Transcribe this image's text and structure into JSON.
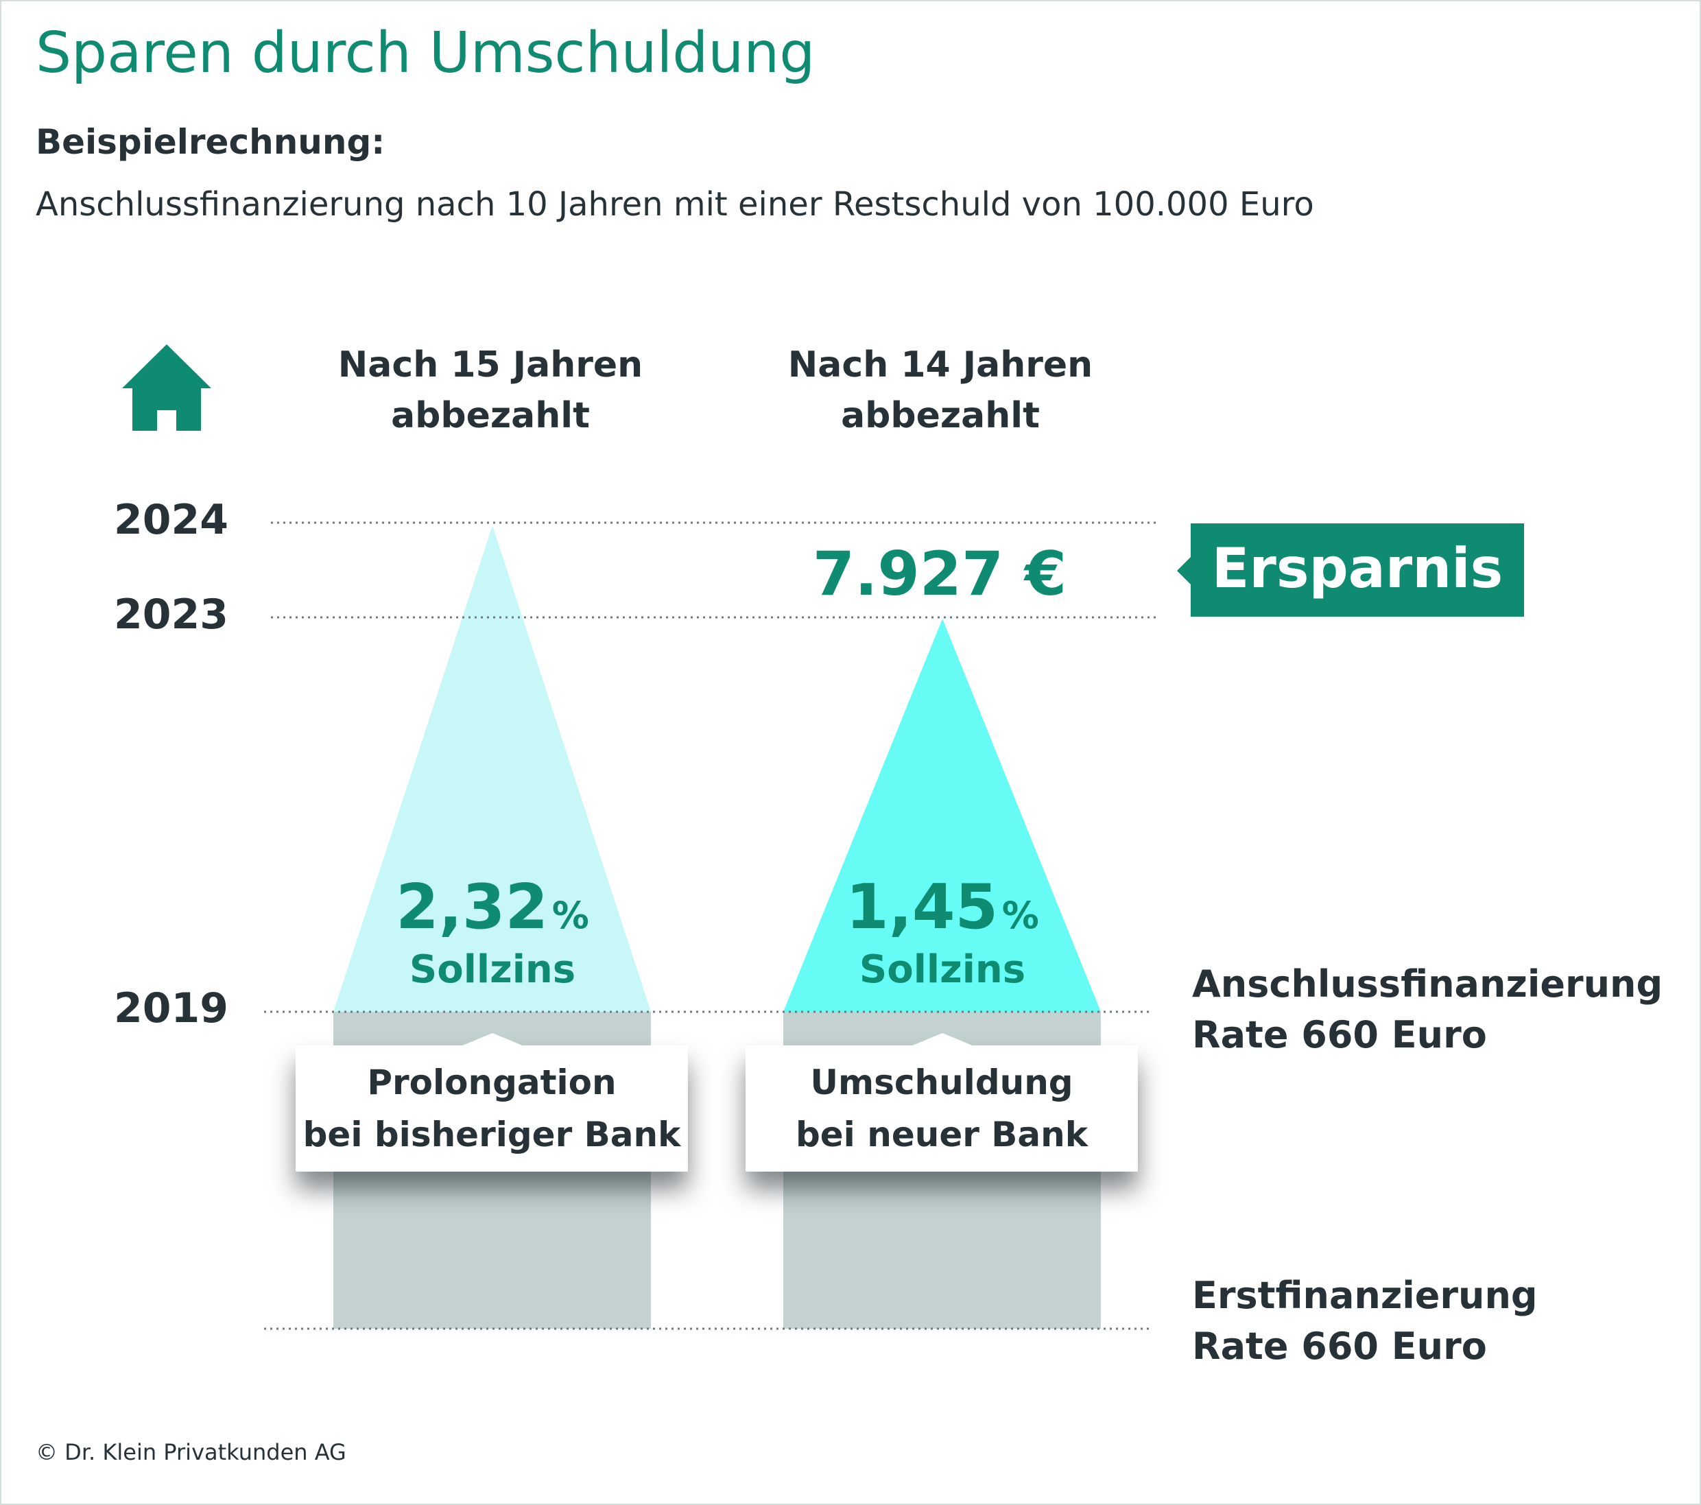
{
  "title": "Sparen durch Umschuldung",
  "subtitle_bold": "Beispielrechnung:",
  "subtitle": "Anschlussfinanzierung nach 10 Jahren mit einer Restschuld von 100.000 Euro",
  "icon": "house-icon",
  "colors": {
    "accent": "#0f8b72",
    "triangle_light": "#c8f7f7",
    "triangle_bright": "#66fcf5",
    "bar": "#c3d2d0",
    "text": "#273238"
  },
  "columns": [
    {
      "head_line1": "Nach 15 Jahren",
      "head_line2": "abbezahlt",
      "rate_value": "2,32",
      "rate_unit": "%",
      "rate_label": "Sollzins",
      "box_line1": "Prolongation",
      "box_line2": "bei bisheriger Bank"
    },
    {
      "head_line1": "Nach 14 Jahren",
      "head_line2": "abbezahlt",
      "rate_value": "1,45",
      "rate_unit": "%",
      "rate_label": "Sollzins",
      "box_line1": "Umschuldung",
      "box_line2": "bei neuer Bank"
    }
  ],
  "years": {
    "y2024": "2024",
    "y2023": "2023",
    "y2019": "2019"
  },
  "savings": {
    "value": "7.927 €",
    "label": "Ersparnis"
  },
  "right_labels": {
    "anschluss_line1": "Anschlussfinanzierung",
    "anschluss_line2": "Rate 660 Euro",
    "erst_line1": "Erstfinanzierung",
    "erst_line2": "Rate 660 Euro"
  },
  "copyright": "© Dr. Klein Privatkunden AG",
  "chart_data": {
    "type": "bar",
    "categories": [
      "Prolongation bei bisheriger Bank",
      "Umschuldung bei neuer Bank"
    ],
    "years_to_payoff": [
      15,
      14
    ],
    "payoff_year": [
      2024,
      2023
    ],
    "start_year": 2019,
    "interest_rate_percent": [
      2.32,
      1.45
    ],
    "monthly_rate_eur": 660,
    "remaining_debt_eur": 100000,
    "savings_eur": 7927
  }
}
